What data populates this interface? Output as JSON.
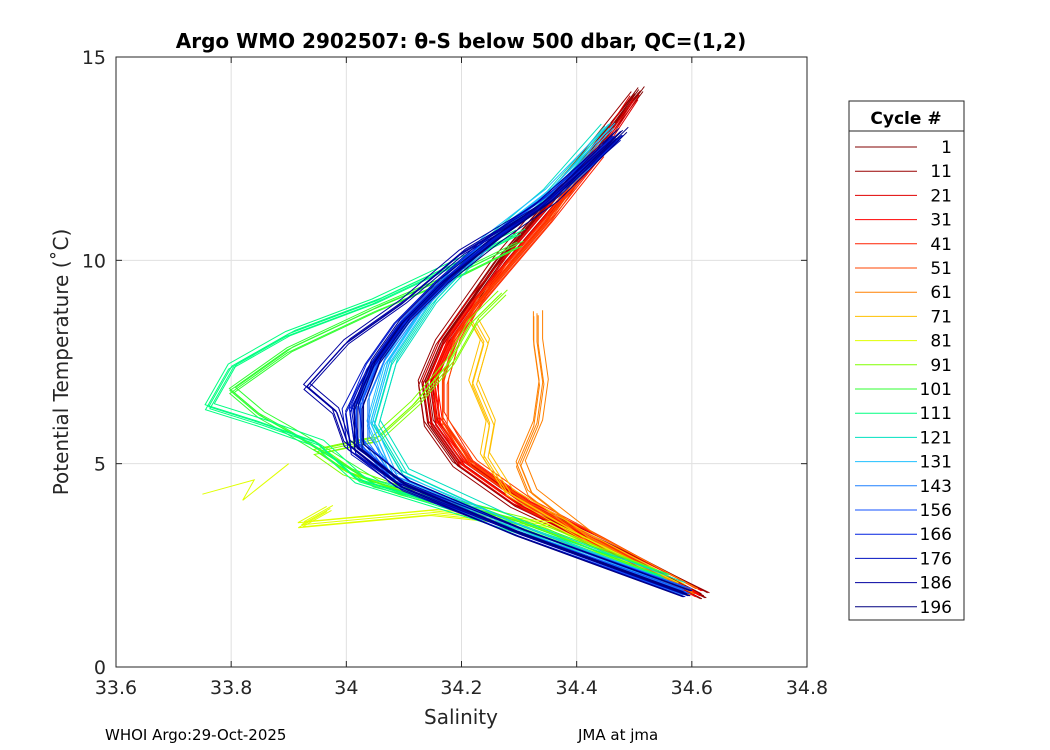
{
  "chart_data": {
    "type": "line",
    "title": "Argo WMO 2902507: θ-S below 500 dbar,  QC=(1,2)",
    "xlabel": "Salinity",
    "ylabel": "Potential Temperature (˚C)",
    "xlim": [
      33.6,
      34.8
    ],
    "ylim": [
      0,
      15
    ],
    "xticks": [
      33.6,
      33.8,
      34,
      34.2,
      34.4,
      34.6,
      34.8
    ],
    "xtick_labels": [
      "33.6",
      "33.8",
      "34",
      "34.2",
      "34.4",
      "34.6",
      "34.8"
    ],
    "yticks": [
      0,
      5,
      10,
      15
    ],
    "ytick_labels": [
      "0",
      "5",
      "10",
      "15"
    ],
    "grid": true,
    "legend_title": "Cycle #",
    "legend_position": "outside-right",
    "series": [
      {
        "name": "1",
        "color": "#800000",
        "points": [
          [
            34.62,
            1.75
          ],
          [
            34.45,
            3.0
          ],
          [
            34.3,
            4.0
          ],
          [
            34.2,
            5.0
          ],
          [
            34.15,
            6.0
          ],
          [
            34.14,
            7.0
          ],
          [
            34.17,
            8.0
          ],
          [
            34.22,
            9.0
          ],
          [
            34.27,
            10.0
          ],
          [
            34.33,
            11.0
          ],
          [
            34.42,
            12.5
          ],
          [
            34.51,
            14.2
          ]
        ]
      },
      {
        "name": "11",
        "color": "#990000",
        "points": [
          [
            34.62,
            1.75
          ],
          [
            34.44,
            3.0
          ],
          [
            34.29,
            4.0
          ],
          [
            34.19,
            5.0
          ],
          [
            34.14,
            6.0
          ],
          [
            34.13,
            7.0
          ],
          [
            34.16,
            8.0
          ],
          [
            34.21,
            9.0
          ],
          [
            34.26,
            10.0
          ],
          [
            34.32,
            11.0
          ],
          [
            34.41,
            12.5
          ],
          [
            34.5,
            14.1
          ]
        ]
      },
      {
        "name": "21",
        "color": "#e00000",
        "points": [
          [
            34.61,
            1.8
          ],
          [
            34.44,
            3.0
          ],
          [
            34.3,
            4.0
          ],
          [
            34.2,
            5.0
          ],
          [
            34.15,
            6.0
          ],
          [
            34.14,
            7.0
          ],
          [
            34.17,
            8.0
          ],
          [
            34.22,
            9.0
          ],
          [
            34.28,
            10.0
          ],
          [
            34.34,
            11.0
          ],
          [
            34.43,
            12.5
          ],
          [
            34.5,
            14.0
          ]
        ]
      },
      {
        "name": "31",
        "color": "#ff0000",
        "points": [
          [
            34.61,
            1.8
          ],
          [
            34.45,
            3.0
          ],
          [
            34.31,
            4.0
          ],
          [
            34.21,
            5.0
          ],
          [
            34.16,
            6.0
          ],
          [
            34.15,
            7.0
          ],
          [
            34.18,
            8.0
          ],
          [
            34.23,
            9.0
          ],
          [
            34.28,
            10.0
          ],
          [
            34.34,
            11.0
          ],
          [
            34.43,
            12.6
          ]
        ]
      },
      {
        "name": "41",
        "color": "#ff2000",
        "points": [
          [
            34.6,
            1.85
          ],
          [
            34.45,
            3.0
          ],
          [
            34.31,
            4.0
          ],
          [
            34.21,
            5.0
          ],
          [
            34.16,
            6.2
          ],
          [
            34.16,
            7.2
          ],
          [
            34.19,
            8.2
          ],
          [
            34.23,
            9.0
          ],
          [
            34.29,
            10.0
          ],
          [
            34.35,
            11.0
          ],
          [
            34.44,
            12.6
          ]
        ]
      },
      {
        "name": "51",
        "color": "#ff4500",
        "points": [
          [
            34.6,
            1.85
          ],
          [
            34.44,
            3.1
          ],
          [
            34.32,
            4.0
          ],
          [
            34.22,
            5.0
          ],
          [
            34.17,
            6.0
          ],
          [
            34.17,
            7.0
          ],
          [
            34.19,
            8.0
          ],
          [
            34.23,
            9.0
          ],
          [
            34.29,
            10.0
          ],
          [
            34.35,
            11.0
          ],
          [
            34.44,
            12.8
          ]
        ]
      },
      {
        "name": "61",
        "color": "#ff8000",
        "points": [
          [
            34.6,
            1.85
          ],
          [
            34.42,
            3.2
          ],
          [
            34.32,
            4.3
          ],
          [
            34.3,
            5.0
          ],
          [
            34.33,
            6.0
          ],
          [
            34.34,
            7.0
          ],
          [
            34.33,
            8.0
          ],
          [
            34.33,
            8.7
          ]
        ]
      },
      {
        "name": "71",
        "color": "#ffc000",
        "points": [
          [
            34.58,
            1.95
          ],
          [
            34.4,
            3.3
          ],
          [
            34.28,
            4.3
          ],
          [
            34.24,
            5.2
          ],
          [
            34.25,
            6.0
          ],
          [
            34.22,
            7.0
          ],
          [
            34.24,
            8.0
          ],
          [
            34.22,
            8.5
          ]
        ]
      },
      {
        "name": "81",
        "color": "#e0ff00",
        "points": [
          [
            34.57,
            2.0
          ],
          [
            34.35,
            3.5
          ],
          [
            34.15,
            3.8
          ],
          [
            33.92,
            3.5
          ],
          [
            33.97,
            3.9
          ]
        ],
        "extra": [
          [
            33.75,
            4.25
          ],
          [
            33.84,
            4.6
          ],
          [
            33.82,
            4.1
          ],
          [
            33.9,
            5.0
          ]
        ]
      },
      {
        "name": "91",
        "color": "#80ff00",
        "points": [
          [
            34.55,
            2.2
          ],
          [
            34.3,
            3.6
          ],
          [
            34.1,
            4.3
          ],
          [
            34.0,
            4.8
          ],
          [
            33.95,
            5.3
          ],
          [
            34.05,
            5.6
          ],
          [
            34.12,
            6.5
          ],
          [
            34.18,
            7.5
          ],
          [
            34.22,
            8.5
          ],
          [
            34.27,
            9.2
          ]
        ]
      },
      {
        "name": "101",
        "color": "#30ff30",
        "points": [
          [
            34.55,
            2.2
          ],
          [
            34.25,
            3.8
          ],
          [
            34.05,
            4.5
          ],
          [
            33.97,
            5.2
          ],
          [
            33.9,
            5.8
          ],
          [
            33.85,
            6.2
          ],
          [
            33.8,
            6.8
          ],
          [
            33.9,
            7.8
          ],
          [
            34.05,
            8.8
          ],
          [
            34.2,
            9.7
          ],
          [
            34.3,
            10.4
          ]
        ]
      },
      {
        "name": "111",
        "color": "#00ff80",
        "points": [
          [
            34.55,
            2.2
          ],
          [
            34.25,
            3.6
          ],
          [
            34.02,
            4.6
          ],
          [
            33.95,
            5.5
          ],
          [
            33.85,
            6.0
          ],
          [
            33.76,
            6.4
          ],
          [
            33.8,
            7.4
          ],
          [
            33.9,
            8.2
          ],
          [
            34.05,
            9.0
          ],
          [
            34.2,
            10.0
          ],
          [
            34.3,
            10.7
          ]
        ]
      },
      {
        "name": "121",
        "color": "#00e0c0",
        "points": [
          [
            34.58,
            2.0
          ],
          [
            34.3,
            3.5
          ],
          [
            34.1,
            4.8
          ],
          [
            34.05,
            6.0
          ],
          [
            34.08,
            7.5
          ],
          [
            34.15,
            9.0
          ],
          [
            34.25,
            10.5
          ],
          [
            34.35,
            11.7
          ],
          [
            34.45,
            13.3
          ]
        ]
      },
      {
        "name": "131",
        "color": "#20c0ff",
        "points": [
          [
            34.58,
            1.9
          ],
          [
            34.3,
            3.4
          ],
          [
            34.08,
            4.7
          ],
          [
            34.04,
            6.0
          ],
          [
            34.07,
            7.5
          ],
          [
            34.14,
            9.0
          ],
          [
            34.24,
            10.5
          ],
          [
            34.35,
            11.7
          ],
          [
            34.46,
            13.3
          ]
        ]
      },
      {
        "name": "143",
        "color": "#1e80ff",
        "points": [
          [
            34.59,
            1.85
          ],
          [
            34.3,
            3.3
          ],
          [
            34.08,
            4.6
          ],
          [
            34.03,
            5.6
          ],
          [
            34.03,
            6.6
          ],
          [
            34.06,
            7.6
          ],
          [
            34.11,
            8.6
          ],
          [
            34.18,
            9.6
          ],
          [
            34.26,
            10.6
          ],
          [
            34.36,
            11.6
          ],
          [
            34.46,
            12.9
          ]
        ]
      },
      {
        "name": "156",
        "color": "#1050ff",
        "points": [
          [
            34.59,
            1.85
          ],
          [
            34.3,
            3.3
          ],
          [
            34.1,
            4.5
          ],
          [
            34.02,
            5.5
          ],
          [
            34.02,
            6.5
          ],
          [
            34.05,
            7.5
          ],
          [
            34.1,
            8.5
          ],
          [
            34.17,
            9.5
          ],
          [
            34.25,
            10.5
          ],
          [
            34.35,
            11.5
          ],
          [
            34.46,
            12.9
          ]
        ]
      },
      {
        "name": "166",
        "color": "#0020e0",
        "points": [
          [
            34.59,
            1.8
          ],
          [
            34.3,
            3.3
          ],
          [
            34.1,
            4.5
          ],
          [
            34.02,
            5.4
          ],
          [
            34.01,
            6.4
          ],
          [
            34.04,
            7.4
          ],
          [
            34.09,
            8.4
          ],
          [
            34.16,
            9.4
          ],
          [
            34.25,
            10.5
          ],
          [
            34.35,
            11.5
          ],
          [
            34.47,
            13.0
          ]
        ]
      },
      {
        "name": "176",
        "color": "#0010c0",
        "points": [
          [
            34.59,
            1.8
          ],
          [
            34.3,
            3.3
          ],
          [
            34.1,
            4.4
          ],
          [
            34.01,
            5.3
          ],
          [
            34.0,
            6.3
          ],
          [
            34.04,
            7.4
          ],
          [
            34.09,
            8.4
          ],
          [
            34.16,
            9.4
          ],
          [
            34.24,
            10.4
          ],
          [
            34.34,
            11.4
          ],
          [
            34.47,
            13.0
          ]
        ]
      },
      {
        "name": "186",
        "color": "#0000a0",
        "points": [
          [
            34.59,
            1.8
          ],
          [
            34.3,
            3.3
          ],
          [
            34.09,
            4.5
          ],
          [
            34.0,
            5.5
          ],
          [
            33.98,
            6.3
          ],
          [
            33.93,
            6.9
          ],
          [
            34.0,
            8.0
          ],
          [
            34.1,
            9.0
          ],
          [
            34.2,
            10.2
          ],
          [
            34.33,
            11.3
          ],
          [
            34.47,
            13.1
          ]
        ]
      },
      {
        "name": "196",
        "color": "#000080",
        "points": [
          [
            34.59,
            1.8
          ],
          [
            34.3,
            3.3
          ],
          [
            34.1,
            4.5
          ],
          [
            34.02,
            5.4
          ],
          [
            34.02,
            6.4
          ],
          [
            34.05,
            7.5
          ],
          [
            34.1,
            8.5
          ],
          [
            34.17,
            9.5
          ],
          [
            34.26,
            10.5
          ],
          [
            34.36,
            11.5
          ],
          [
            34.48,
            13.2
          ]
        ]
      }
    ]
  },
  "footer": {
    "left": "WHOI Argo:29-Oct-2025",
    "right": "JMA at jma"
  }
}
